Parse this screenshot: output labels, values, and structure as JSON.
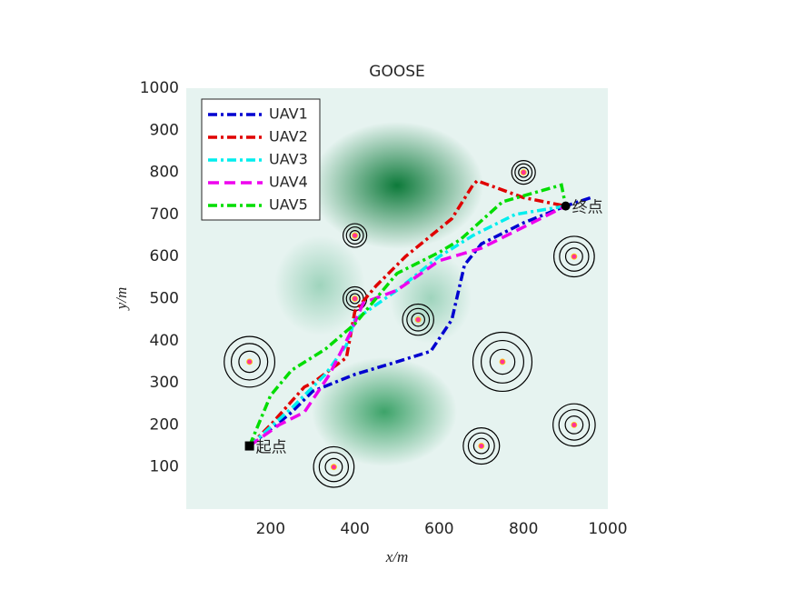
{
  "chart_data": {
    "type": "line",
    "title": "GOOSE",
    "x_label": "x/m",
    "y_label": "y/m",
    "xlim": [
      0,
      1000
    ],
    "ylim": [
      0,
      1000
    ],
    "xticks": [
      200,
      400,
      600,
      800,
      1000
    ],
    "yticks": [
      100,
      200,
      300,
      400,
      500,
      600,
      700,
      800,
      900,
      1000
    ],
    "grid": false,
    "legend": "upper-left",
    "series": [
      {
        "name": "UAV1",
        "color": "#0000d0",
        "style": "dashdot",
        "x": [
          150,
          200,
          250,
          300,
          350,
          400,
          500,
          580,
          630,
          660,
          700,
          800,
          900,
          960
        ],
        "y": [
          150,
          190,
          230,
          280,
          300,
          320,
          350,
          375,
          450,
          580,
          630,
          680,
          720,
          740
        ]
      },
      {
        "name": "UAV2",
        "color": "#e00000",
        "style": "dashdot",
        "x": [
          150,
          200,
          280,
          300,
          380,
          400,
          450,
          520,
          630,
          680,
          690,
          800,
          900
        ],
        "y": [
          150,
          200,
          290,
          300,
          360,
          470,
          530,
          600,
          690,
          770,
          780,
          740,
          720
        ]
      },
      {
        "name": "UAV3",
        "color": "#00eeee",
        "style": "dashdot",
        "x": [
          150,
          250,
          330,
          380,
          400,
          500,
          600,
          680,
          780,
          900
        ],
        "y": [
          150,
          240,
          320,
          390,
          450,
          520,
          600,
          650,
          700,
          720
        ]
      },
      {
        "name": "UAV4",
        "color": "#ee00ee",
        "style": "dashed",
        "x": [
          150,
          220,
          280,
          340,
          390,
          420,
          500,
          600,
          700,
          800,
          900
        ],
        "y": [
          150,
          200,
          230,
          320,
          420,
          490,
          520,
          590,
          620,
          670,
          720
        ]
      },
      {
        "name": "UAV5",
        "color": "#00dd00",
        "style": "dashdot",
        "x": [
          150,
          200,
          250,
          330,
          400,
          500,
          600,
          650,
          750,
          890,
          900
        ],
        "y": [
          150,
          270,
          330,
          380,
          440,
          560,
          610,
          640,
          730,
          770,
          720
        ]
      }
    ],
    "threats": {
      "x": [
        150,
        400,
        400,
        550,
        750,
        700,
        350,
        800,
        920,
        920
      ],
      "y": [
        350,
        650,
        500,
        450,
        350,
        150,
        100,
        800,
        600,
        200
      ],
      "r": [
        60,
        28,
        28,
        37,
        70,
        43,
        48,
        28,
        48,
        50
      ]
    },
    "annotations": [
      {
        "text": "起点",
        "x": 150,
        "y": 150
      },
      {
        "text": "终点",
        "x": 900,
        "y": 720
      }
    ]
  }
}
